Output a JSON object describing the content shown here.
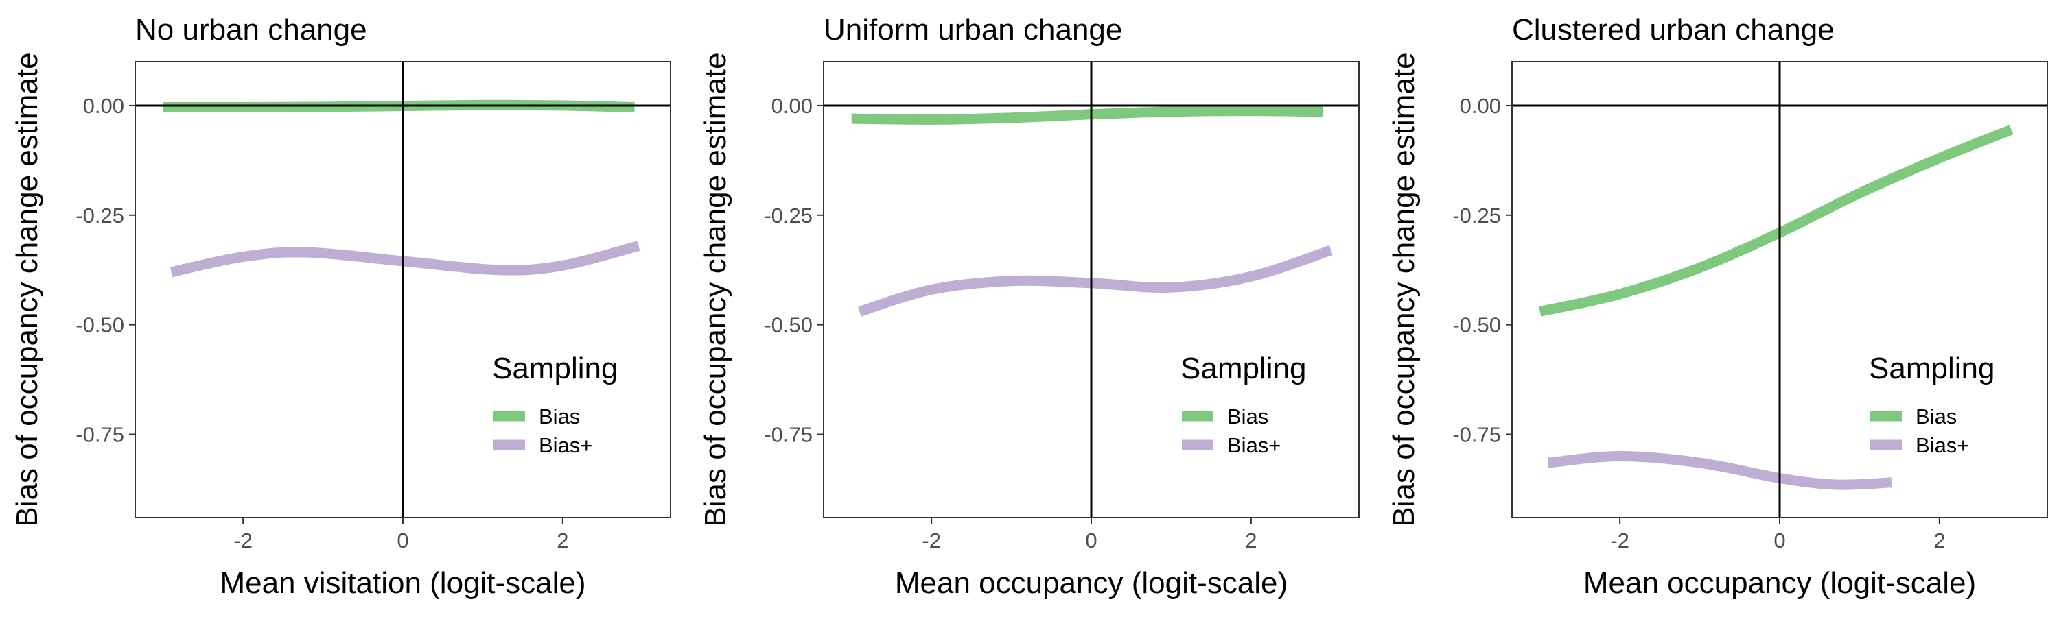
{
  "chart_data": [
    {
      "type": "line",
      "title": "No urban change",
      "xlabel": "Mean visitation (logit-scale)",
      "ylabel": "Bias of occupancy change estimate",
      "xlim": [
        -3.35,
        3.35
      ],
      "ylim": [
        -0.94,
        0.1
      ],
      "x_ticks": [
        -2,
        0,
        2
      ],
      "x_tick_labels": [
        "-2",
        "0",
        "2"
      ],
      "y_ticks": [
        0.0,
        -0.25,
        -0.5,
        -0.75
      ],
      "y_tick_labels": [
        "0.00",
        "-0.25",
        "-0.50",
        "-0.75"
      ],
      "reference_lines": {
        "h": 0,
        "v": 0
      },
      "grid": false,
      "legend": {
        "title": "Sampling",
        "position": "bottom-right",
        "entries": [
          "Bias",
          "Bias+"
        ]
      },
      "series": [
        {
          "name": "Bias",
          "color": "#7fc97f",
          "x": [
            -3,
            -2,
            -1,
            0,
            1,
            2,
            2.9
          ],
          "y": [
            -0.004,
            -0.004,
            -0.003,
            -0.001,
            0.001,
            0.0,
            -0.004
          ]
        },
        {
          "name": "Bias+",
          "color": "#beaed4",
          "x": [
            -2.9,
            -2,
            -1.2,
            0,
            1.2,
            2,
            2.95
          ],
          "y": [
            -0.38,
            -0.345,
            -0.335,
            -0.355,
            -0.375,
            -0.365,
            -0.32
          ]
        }
      ]
    },
    {
      "type": "line",
      "title": "Uniform urban change",
      "xlabel": "Mean occupancy (logit-scale)",
      "ylabel": "Bias of occupancy change estimate",
      "xlim": [
        -3.35,
        3.35
      ],
      "ylim": [
        -0.94,
        0.1
      ],
      "x_ticks": [
        -2,
        0,
        2
      ],
      "x_tick_labels": [
        "-2",
        "0",
        "2"
      ],
      "y_ticks": [
        0.0,
        -0.25,
        -0.5,
        -0.75
      ],
      "y_tick_labels": [
        "0.00",
        "-0.25",
        "-0.50",
        "-0.75"
      ],
      "reference_lines": {
        "h": 0,
        "v": 0
      },
      "grid": false,
      "legend": {
        "title": "Sampling",
        "position": "bottom-right",
        "entries": [
          "Bias",
          "Bias+"
        ]
      },
      "series": [
        {
          "name": "Bias",
          "color": "#7fc97f",
          "x": [
            -3,
            -2,
            -1,
            0,
            1,
            2,
            2.9
          ],
          "y": [
            -0.03,
            -0.032,
            -0.028,
            -0.02,
            -0.014,
            -0.012,
            -0.014
          ]
        },
        {
          "name": "Bias+",
          "color": "#beaed4",
          "x": [
            -2.9,
            -2,
            -1,
            0,
            1,
            2,
            3
          ],
          "y": [
            -0.47,
            -0.42,
            -0.4,
            -0.405,
            -0.415,
            -0.39,
            -0.33
          ]
        }
      ]
    },
    {
      "type": "line",
      "title": "Clustered urban change",
      "xlabel": "Mean occupancy (logit-scale)",
      "ylabel": "Bias of occupancy change estimate",
      "xlim": [
        -3.35,
        3.35
      ],
      "ylim": [
        -0.94,
        0.1
      ],
      "x_ticks": [
        -2,
        0,
        2
      ],
      "x_tick_labels": [
        "-2",
        "0",
        "2"
      ],
      "y_ticks": [
        0.0,
        -0.25,
        -0.5,
        -0.75
      ],
      "y_tick_labels": [
        "0.00",
        "-0.25",
        "-0.50",
        "-0.75"
      ],
      "reference_lines": {
        "h": 0,
        "v": 0
      },
      "grid": false,
      "legend": {
        "title": "Sampling",
        "position": "bottom-right",
        "entries": [
          "Bias",
          "Bias+"
        ]
      },
      "series": [
        {
          "name": "Bias",
          "color": "#7fc97f",
          "x": [
            -3,
            -2,
            -1,
            0,
            1,
            2,
            2.9
          ],
          "y": [
            -0.47,
            -0.43,
            -0.37,
            -0.29,
            -0.2,
            -0.12,
            -0.055
          ]
        },
        {
          "name": "Bias+",
          "color": "#beaed4",
          "x": [
            -2.9,
            -2,
            -1,
            0,
            0.7,
            1.4
          ],
          "y": [
            -0.815,
            -0.8,
            -0.815,
            -0.85,
            -0.865,
            -0.86
          ]
        }
      ]
    }
  ]
}
